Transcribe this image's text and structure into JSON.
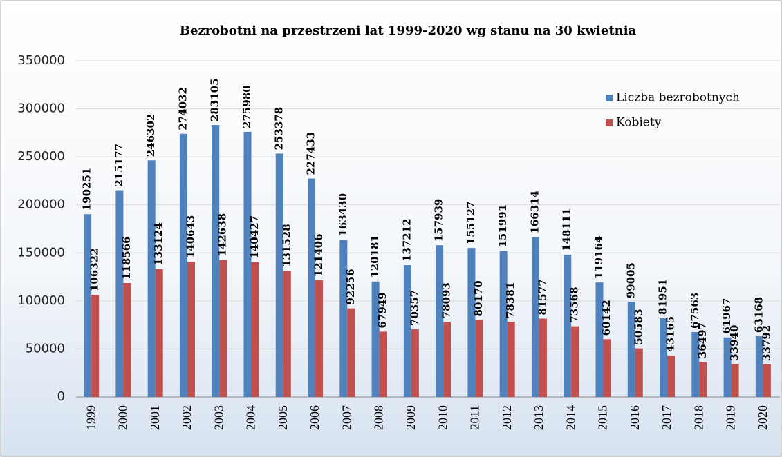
{
  "chart_data": {
    "type": "bar",
    "title": "Bezrobotni na przestrzeni lat 1999-2020 wg stanu na 30 kwietnia",
    "categories": [
      "1999",
      "2000",
      "2001",
      "2002",
      "2003",
      "2004",
      "2005",
      "2006",
      "2007",
      "2008",
      "2009",
      "2010",
      "2011",
      "2012",
      "2013",
      "2014",
      "2015",
      "2016",
      "2017",
      "2018",
      "2019",
      "2020"
    ],
    "series": [
      {
        "name": "Liczba bezrobotnych",
        "color": "#4f81bd",
        "values": [
          190251,
          215177,
          246302,
          274032,
          283105,
          275980,
          253378,
          227433,
          163430,
          120181,
          137212,
          157939,
          155127,
          151991,
          166314,
          148111,
          119164,
          99005,
          81951,
          67563,
          61967,
          63168
        ]
      },
      {
        "name": "Kobiety",
        "color": "#c0504d",
        "values": [
          106322,
          118566,
          133124,
          140643,
          142638,
          140427,
          131528,
          121406,
          92256,
          67949,
          70357,
          78093,
          80170,
          78381,
          81577,
          73568,
          60142,
          50583,
          43165,
          36497,
          33940,
          33792
        ]
      }
    ],
    "ylim": [
      0,
      350000
    ],
    "yticks": [
      0,
      50000,
      100000,
      150000,
      200000,
      250000,
      300000,
      350000
    ],
    "grid": true,
    "legend": "right"
  }
}
